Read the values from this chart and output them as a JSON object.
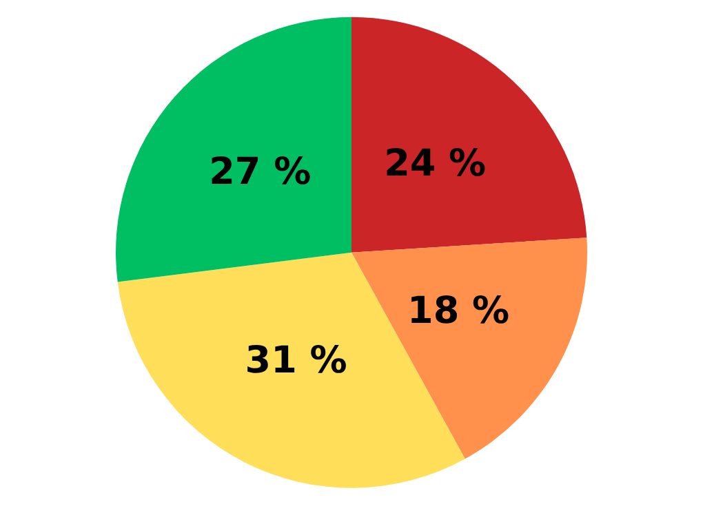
{
  "chart_data": {
    "type": "pie",
    "categories": [
      null,
      null,
      null,
      null
    ],
    "values": [
      24,
      18,
      31,
      27
    ],
    "colors": [
      "#cc2528",
      "#ff914d",
      "#ffde59",
      "#00bf63"
    ],
    "value_labels": [
      "24 %",
      "18 %",
      "31 %",
      "27 %"
    ]
  }
}
